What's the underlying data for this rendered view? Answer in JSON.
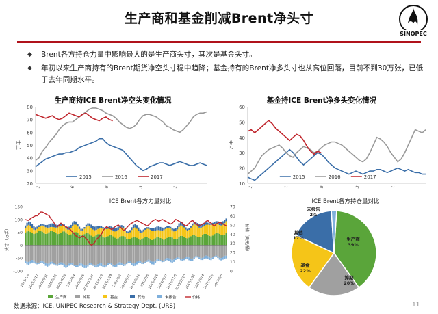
{
  "slide": {
    "title": "生产商和基金削减Brent净头寸",
    "logo_name": "sinopec-logo",
    "logo_text": "SINOPEC",
    "bullets": [
      "Brent各方持仓力量中影响最大的是生产商头寸，其次是基金头寸。",
      "年初以来生产商持有的Brent期货净空头寸稳中趋降；基金持有的Brent净多头寸也从高位回落，目前不到30万张，已低于去年同期水平。"
    ],
    "source": "数据来源：ICE, UNIPEC Research & Strategy Dept. (URS)",
    "page_number": "11"
  },
  "chart_data": [
    {
      "type": "line",
      "title": "生产商持ICE Brent净空头变化情况",
      "ylabel": "万手",
      "ylim": [
        20,
        80
      ],
      "yticks": [
        "20",
        "30",
        "40",
        "50",
        "60",
        "70",
        "80"
      ],
      "xticks": [
        "1",
        "6",
        "8",
        "3",
        "1"
      ],
      "x_count": 52,
      "series": [
        {
          "name": "2015",
          "color": "#3a6ea8",
          "values": [
            33,
            35,
            37,
            39,
            40,
            41,
            42,
            43,
            43,
            44,
            44,
            45,
            46,
            48,
            49,
            50,
            51,
            52,
            53,
            55,
            55,
            52,
            50,
            49,
            48,
            47,
            46,
            43,
            40,
            37,
            34,
            32,
            30,
            31,
            33,
            34,
            35,
            36,
            36,
            35,
            34,
            35,
            36,
            37,
            36,
            35,
            34,
            34,
            35,
            36,
            35,
            34
          ]
        },
        {
          "name": "2016",
          "color": "#999999",
          "values": [
            38,
            40,
            45,
            48,
            52,
            55,
            58,
            62,
            65,
            67,
            68,
            68,
            70,
            72,
            74,
            76,
            78,
            79,
            79,
            78,
            77,
            75,
            74,
            73,
            71,
            68,
            66,
            64,
            63,
            64,
            66,
            70,
            73,
            74,
            74,
            73,
            72,
            70,
            68,
            65,
            64,
            62,
            61,
            60,
            62,
            65,
            68,
            72,
            74,
            75,
            75,
            76
          ]
        },
        {
          "name": "2017",
          "color": "#c0262d",
          "values": [
            74,
            73,
            72,
            71,
            72,
            73,
            71,
            70,
            71,
            73,
            75,
            74,
            73,
            72,
            74,
            75,
            73,
            71,
            70,
            69,
            71,
            72,
            70,
            69,
            null,
            null,
            null,
            null,
            null,
            null,
            null,
            null,
            null,
            null,
            null,
            null,
            null,
            null,
            null,
            null,
            null,
            null,
            null,
            null,
            null,
            null,
            null,
            null,
            null,
            null,
            null,
            null
          ]
        }
      ],
      "legend": "bottom"
    },
    {
      "type": "line",
      "title": "基金持ICE Brent净多头变化情况",
      "ylabel": "万手",
      "ylim": [
        10,
        60
      ],
      "yticks": [
        "10",
        "20",
        "30",
        "40",
        "50",
        "60"
      ],
      "xticks": [
        "1",
        "1",
        "8",
        "3",
        "1"
      ],
      "x_count": 52,
      "series": [
        {
          "name": "2015",
          "color": "#3a6ea8",
          "values": [
            14,
            13,
            12,
            14,
            16,
            18,
            20,
            22,
            24,
            26,
            28,
            30,
            32,
            30,
            27,
            24,
            22,
            24,
            26,
            28,
            30,
            29,
            27,
            24,
            22,
            20,
            19,
            18,
            17,
            16,
            17,
            18,
            17,
            16,
            17,
            18,
            18,
            19,
            19,
            18,
            17,
            18,
            19,
            20,
            19,
            18,
            19,
            18,
            17,
            17,
            16,
            16
          ]
        },
        {
          "name": "2016",
          "color": "#999999",
          "values": [
            16,
            18,
            20,
            24,
            28,
            30,
            32,
            33,
            34,
            35,
            33,
            30,
            28,
            27,
            30,
            32,
            34,
            33,
            32,
            30,
            31,
            33,
            35,
            36,
            37,
            37,
            36,
            35,
            33,
            31,
            29,
            27,
            25,
            24,
            26,
            30,
            35,
            40,
            39,
            37,
            34,
            30,
            27,
            24,
            26,
            30,
            35,
            40,
            45,
            44,
            43,
            45
          ]
        },
        {
          "name": "2017",
          "color": "#c0262d",
          "values": [
            44,
            45,
            43,
            45,
            47,
            49,
            51,
            49,
            46,
            44,
            42,
            40,
            38,
            40,
            42,
            41,
            38,
            34,
            31,
            29,
            31,
            30,
            null,
            null,
            null,
            null,
            null,
            null,
            null,
            null,
            null,
            null,
            null,
            null,
            null,
            null,
            null,
            null,
            null,
            null,
            null,
            null,
            null,
            null,
            null,
            null,
            null,
            null,
            null,
            null,
            null,
            null
          ]
        }
      ],
      "legend": "bottom"
    },
    {
      "type": "bar",
      "title": "ICE Brent各方力量对比",
      "ylabel": "头寸（万手）",
      "y2label": "价格（美元/桶）",
      "ylim": [
        -100,
        150
      ],
      "yticks": [
        "-100",
        "-50",
        "0",
        "50",
        "100",
        "150"
      ],
      "y2lim": [
        0,
        70
      ],
      "y2ticks": [
        "0",
        "10",
        "20",
        "30",
        "40",
        "50",
        "60",
        "70"
      ],
      "xticks": [
        "2015/1/6",
        "2015/2/17",
        "2015/3/31",
        "2015/5/12",
        "2015/6/23",
        "2015/8/4",
        "2015/9/15",
        "2015/10/27",
        "2015/12/8",
        "2016/1/19",
        "2016/3/1",
        "2016/4/12",
        "2016/5/24",
        "2016/7/5",
        "2016/8/16",
        "2016/9/27",
        "2016/11/8",
        "2016/12/20",
        "2017/1/31",
        "2017/3/14",
        "2017/4/25",
        "2017/6/6"
      ],
      "legend": [
        "生产商",
        "掉期",
        "基金",
        "其他",
        "未报告",
        "价格"
      ],
      "colors": {
        "producer": "#5aa53a",
        "swap": "#a0a0a0",
        "fund": "#f5c518",
        "other": "#3a6ea8",
        "unreported": "#7fb0dc",
        "price": "#c0262d"
      },
      "bar_count": 120,
      "price": [
        56,
        55,
        55,
        57,
        58,
        59,
        60,
        60,
        62,
        64,
        64,
        63,
        62,
        61,
        60,
        57,
        55,
        52,
        49,
        48,
        50,
        52,
        50,
        49,
        48,
        47,
        46,
        44,
        42,
        40,
        38,
        37,
        36,
        37,
        38,
        37,
        35,
        33,
        30,
        28,
        29,
        31,
        34,
        36,
        38,
        40,
        44,
        46,
        48,
        47,
        46,
        45,
        46,
        48,
        49,
        50,
        48,
        46,
        44,
        45,
        47,
        49,
        51,
        52,
        53,
        54,
        55,
        54,
        53,
        52,
        51,
        50,
        49,
        50,
        52,
        54,
        55,
        56,
        55,
        54,
        55,
        56,
        55,
        54,
        53,
        52,
        51,
        52,
        54,
        56,
        55,
        54,
        53,
        52,
        50,
        49,
        50,
        52,
        54,
        55,
        53,
        51,
        50,
        49,
        50,
        51,
        52,
        54,
        55,
        53,
        52,
        50,
        49,
        51,
        52,
        53,
        52,
        51,
        50,
        49
      ]
    },
    {
      "type": "pie",
      "title": "ICE Brent各方持仓量对比",
      "slices": [
        {
          "name": "生产商",
          "value": 39,
          "label": "生产商\n39%",
          "color": "#5aa53a"
        },
        {
          "name": "掉期",
          "value": 20,
          "label": "掉期\n20%",
          "color": "#a0a0a0"
        },
        {
          "name": "基金",
          "value": 22,
          "label": "基金\n22%",
          "color": "#f5c518"
        },
        {
          "name": "其他",
          "value": 17,
          "label": "其他\n17%",
          "color": "#3a6ea8"
        },
        {
          "name": "未报告",
          "value": 2,
          "label": "未报告\n2%",
          "color": "#7fb0dc"
        }
      ]
    }
  ]
}
